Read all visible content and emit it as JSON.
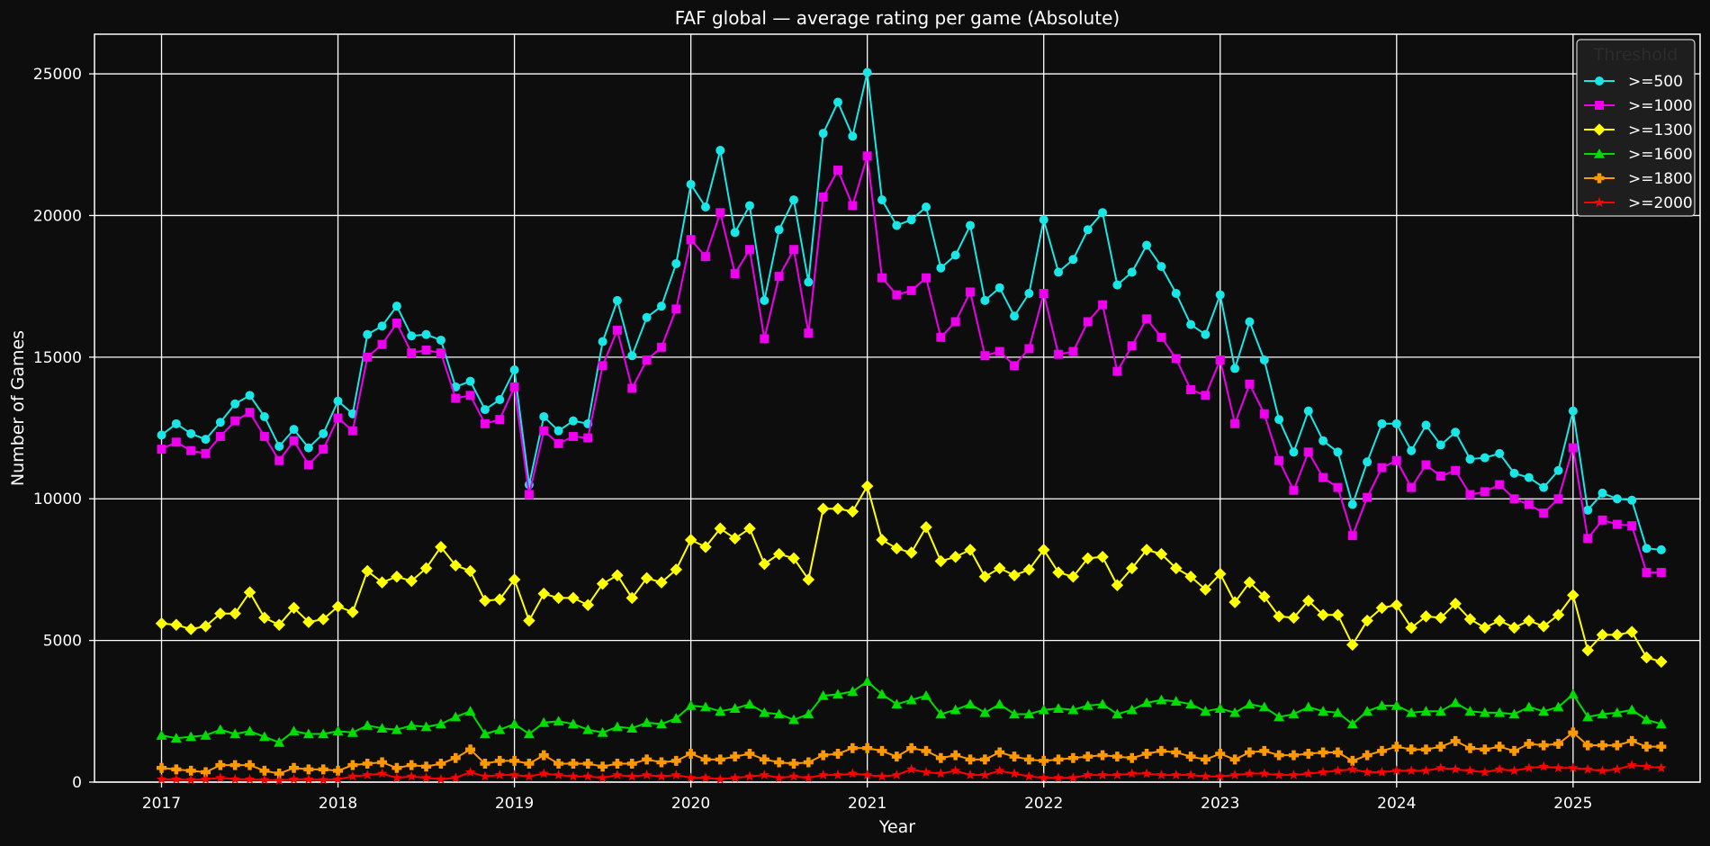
{
  "chart_data": {
    "type": "line",
    "title": "FAF global — average rating per game (Absolute)",
    "xlabel": "Year",
    "ylabel": "Number of Games",
    "xlim": [
      2016.62,
      2025.72
    ],
    "ylim": [
      0,
      26400
    ],
    "x_ticks": [
      2017,
      2018,
      2019,
      2020,
      2021,
      2022,
      2023,
      2024,
      2025
    ],
    "y_ticks": [
      0,
      5000,
      10000,
      15000,
      20000,
      25000
    ],
    "x_tick_labels": [
      "2017",
      "2018",
      "2019",
      "2020",
      "2021",
      "2022",
      "2023",
      "2024",
      "2025"
    ],
    "y_tick_labels": [
      "0",
      "5000",
      "10000",
      "15000",
      "20000",
      "25000"
    ],
    "grid": true,
    "legend": {
      "title": "Threshold",
      "placement": "top-right"
    },
    "x_start": "2017-01",
    "interval": "monthly",
    "series": [
      {
        "name": ">=500",
        "color": "#19e6e6",
        "marker": "circle",
        "values": [
          12250,
          12650,
          12300,
          12100,
          12700,
          13350,
          13650,
          12900,
          11850,
          12450,
          11800,
          12300,
          13450,
          13000,
          15800,
          16100,
          16800,
          15750,
          15800,
          15600,
          13950,
          14150,
          13150,
          13500,
          14550,
          10500,
          12900,
          12400,
          12750,
          12650,
          15550,
          17000,
          15050,
          16400,
          16800,
          18300,
          21100,
          20300,
          22300,
          19400,
          20350,
          17000,
          19500,
          20550,
          17650,
          22900,
          24000,
          22800,
          25050,
          20550,
          19650,
          19850,
          20300,
          18150,
          18600,
          19650,
          17000,
          17450,
          16450,
          17250,
          19850,
          18000,
          18450,
          19500,
          20100,
          17550,
          18000,
          18950,
          18200,
          17250,
          16150,
          15800,
          17200,
          14600,
          16250,
          14900,
          12800,
          11650,
          13100,
          12050,
          11650,
          9800,
          11300,
          12650,
          12650,
          11700,
          12600,
          11900,
          12350,
          11400,
          11450,
          11600,
          10900,
          10750,
          10400,
          11000,
          13100,
          9600,
          10200,
          10000,
          9950,
          8250,
          8200
        ]
      },
      {
        "name": ">=1000",
        "color": "#ee00ee",
        "marker": "square",
        "values": [
          11750,
          12000,
          11700,
          11600,
          12200,
          12750,
          13050,
          12200,
          11350,
          12050,
          11200,
          11750,
          12850,
          12400,
          15000,
          15450,
          16200,
          15150,
          15250,
          15150,
          13550,
          13650,
          12650,
          12800,
          13950,
          10150,
          12400,
          11950,
          12200,
          12150,
          14700,
          15950,
          13900,
          14900,
          15350,
          16700,
          19150,
          18550,
          20100,
          17950,
          18800,
          15650,
          17850,
          18800,
          15850,
          20650,
          21600,
          20350,
          22100,
          17800,
          17200,
          17350,
          17800,
          15700,
          16250,
          17300,
          15050,
          15200,
          14700,
          15300,
          17250,
          15100,
          15200,
          16250,
          16850,
          14500,
          15400,
          16350,
          15700,
          14950,
          13850,
          13650,
          14900,
          12650,
          14050,
          13000,
          11350,
          10300,
          11650,
          10750,
          10400,
          8700,
          10050,
          11100,
          11350,
          10400,
          11200,
          10800,
          11000,
          10150,
          10250,
          10500,
          10000,
          9800,
          9500,
          10000,
          11800,
          8600,
          9250,
          9100,
          9050,
          7400,
          7400
        ]
      },
      {
        "name": ">=1300",
        "color": "#ffff00",
        "marker": "diamond",
        "values": [
          5600,
          5550,
          5400,
          5500,
          5950,
          5950,
          6700,
          5800,
          5550,
          6150,
          5650,
          5750,
          6200,
          6000,
          7450,
          7050,
          7250,
          7100,
          7550,
          8300,
          7650,
          7450,
          6400,
          6450,
          7150,
          5700,
          6650,
          6500,
          6500,
          6250,
          7000,
          7300,
          6500,
          7200,
          7050,
          7500,
          8550,
          8300,
          8950,
          8600,
          8950,
          7700,
          8050,
          7900,
          7150,
          9650,
          9650,
          9550,
          10450,
          8550,
          8250,
          8100,
          9000,
          7800,
          7950,
          8200,
          7250,
          7550,
          7300,
          7500,
          8200,
          7400,
          7250,
          7900,
          7950,
          6950,
          7550,
          8200,
          8050,
          7550,
          7250,
          6800,
          7350,
          6350,
          7050,
          6550,
          5850,
          5800,
          6400,
          5900,
          5900,
          4850,
          5700,
          6150,
          6250,
          5450,
          5850,
          5800,
          6300,
          5750,
          5450,
          5700,
          5450,
          5700,
          5500,
          5900,
          6600,
          4650,
          5200,
          5200,
          5300,
          4400,
          4250
        ]
      },
      {
        "name": ">=1600",
        "color": "#00dd00",
        "marker": "triangle",
        "values": [
          1650,
          1550,
          1600,
          1650,
          1850,
          1700,
          1800,
          1600,
          1400,
          1800,
          1700,
          1700,
          1800,
          1750,
          2000,
          1900,
          1850,
          2000,
          1950,
          2050,
          2300,
          2500,
          1700,
          1850,
          2050,
          1700,
          2100,
          2150,
          2050,
          1850,
          1750,
          1950,
          1900,
          2100,
          2050,
          2250,
          2700,
          2650,
          2500,
          2600,
          2750,
          2450,
          2400,
          2200,
          2400,
          3050,
          3100,
          3200,
          3550,
          3100,
          2750,
          2900,
          3050,
          2400,
          2550,
          2750,
          2450,
          2750,
          2400,
          2400,
          2550,
          2600,
          2550,
          2700,
          2750,
          2400,
          2550,
          2800,
          2900,
          2850,
          2750,
          2500,
          2600,
          2450,
          2750,
          2650,
          2300,
          2400,
          2650,
          2500,
          2450,
          2050,
          2500,
          2700,
          2700,
          2450,
          2500,
          2500,
          2800,
          2500,
          2450,
          2450,
          2400,
          2650,
          2500,
          2650,
          3100,
          2300,
          2400,
          2450,
          2550,
          2200,
          2050
        ]
      },
      {
        "name": ">=1800",
        "color": "#ff9900",
        "marker": "plus",
        "values": [
          500,
          450,
          400,
          350,
          600,
          600,
          600,
          400,
          300,
          500,
          450,
          450,
          400,
          600,
          650,
          700,
          500,
          600,
          550,
          650,
          850,
          1150,
          650,
          750,
          750,
          650,
          950,
          650,
          650,
          650,
          550,
          650,
          650,
          800,
          700,
          750,
          1000,
          800,
          800,
          900,
          1000,
          800,
          700,
          650,
          700,
          950,
          1000,
          1200,
          1200,
          1100,
          900,
          1200,
          1100,
          850,
          950,
          800,
          800,
          1050,
          900,
          800,
          750,
          800,
          850,
          900,
          950,
          900,
          850,
          1000,
          1100,
          1050,
          900,
          800,
          1000,
          800,
          1050,
          1100,
          950,
          950,
          1000,
          1050,
          1050,
          750,
          950,
          1100,
          1250,
          1150,
          1150,
          1250,
          1450,
          1200,
          1150,
          1250,
          1100,
          1350,
          1300,
          1350,
          1750,
          1300,
          1300,
          1300,
          1450,
          1250,
          1250
        ]
      },
      {
        "name": ">=2000",
        "color": "#ff0000",
        "marker": "star",
        "values": [
          100,
          100,
          80,
          100,
          150,
          100,
          100,
          80,
          60,
          100,
          100,
          80,
          100,
          200,
          250,
          300,
          150,
          200,
          150,
          100,
          150,
          350,
          200,
          250,
          250,
          200,
          300,
          250,
          200,
          200,
          150,
          250,
          200,
          250,
          200,
          250,
          150,
          150,
          100,
          150,
          200,
          250,
          150,
          200,
          150,
          250,
          250,
          300,
          250,
          200,
          250,
          450,
          350,
          300,
          400,
          250,
          250,
          400,
          300,
          200,
          150,
          150,
          150,
          250,
          250,
          250,
          300,
          300,
          250,
          250,
          250,
          200,
          200,
          250,
          300,
          300,
          250,
          250,
          300,
          350,
          400,
          450,
          350,
          350,
          400,
          400,
          400,
          500,
          450,
          400,
          350,
          450,
          400,
          500,
          550,
          500,
          500,
          450,
          400,
          450,
          600,
          550,
          500
        ]
      }
    ]
  }
}
